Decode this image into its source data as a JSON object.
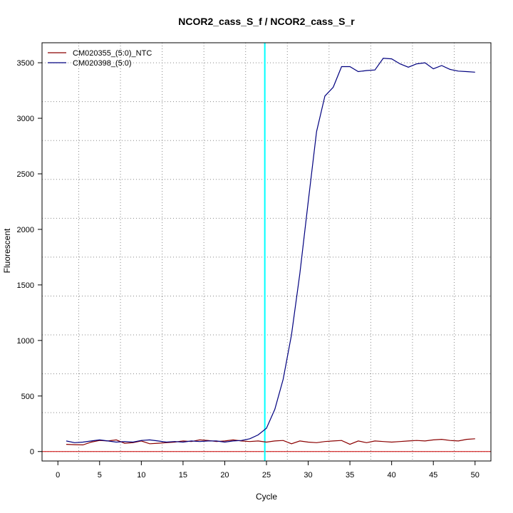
{
  "chart_data": {
    "type": "line",
    "title": "NCOR2_cass_S_f / NCOR2_cass_S_r",
    "xlabel": "Cycle",
    "ylabel": "Fluorescent",
    "xlim": [
      -1.9,
      51.9
    ],
    "ylim": [
      -85,
      3680
    ],
    "x_ticks": [
      0,
      5,
      10,
      15,
      20,
      25,
      30,
      35,
      40,
      45,
      50
    ],
    "y_ticks": [
      0,
      500,
      1000,
      1500,
      2000,
      2500,
      3000,
      3500
    ],
    "x_grid": [
      2.5,
      7.5,
      12.5,
      17.5,
      22.5,
      27.5,
      32.5,
      37.5,
      42.5,
      47.5
    ],
    "y_grid": [
      0,
      350,
      700,
      1050,
      1400,
      1750,
      2100,
      2450,
      2800,
      3150,
      3500
    ],
    "grid": true,
    "legend_position": "top-left",
    "threshold_line": {
      "x": 24.8,
      "color": "#00ffff"
    },
    "baseline": {
      "y": 0,
      "color": "#cc0000"
    },
    "series": [
      {
        "name": "CM020355_(5:0)_NTC",
        "color": "#8b0000",
        "x": [
          1,
          2,
          3,
          4,
          5,
          6,
          7,
          8,
          9,
          10,
          11,
          12,
          13,
          14,
          15,
          16,
          17,
          18,
          19,
          20,
          21,
          22,
          23,
          24,
          25,
          26,
          27,
          28,
          29,
          30,
          31,
          32,
          33,
          34,
          35,
          36,
          37,
          38,
          39,
          40,
          41,
          42,
          43,
          44,
          45,
          46,
          47,
          48,
          49,
          50
        ],
        "values": [
          65,
          62,
          60,
          85,
          100,
          95,
          105,
          75,
          80,
          95,
          70,
          75,
          80,
          85,
          95,
          90,
          105,
          100,
          90,
          95,
          105,
          95,
          90,
          95,
          85,
          95,
          100,
          70,
          95,
          85,
          80,
          90,
          95,
          100,
          65,
          95,
          80,
          95,
          90,
          85,
          90,
          95,
          100,
          95,
          105,
          110,
          100,
          95,
          110,
          115
        ]
      },
      {
        "name": "CM020398_(5:0)",
        "color": "#00007f",
        "x": [
          1,
          2,
          3,
          4,
          5,
          6,
          7,
          8,
          9,
          10,
          11,
          12,
          13,
          14,
          15,
          16,
          17,
          18,
          19,
          20,
          21,
          22,
          23,
          24,
          25,
          26,
          27,
          28,
          29,
          30,
          31,
          32,
          33,
          34,
          35,
          36,
          37,
          38,
          39,
          40,
          41,
          42,
          43,
          44,
          45,
          46,
          47,
          48,
          49,
          50
        ],
        "values": [
          95,
          80,
          85,
          95,
          105,
          95,
          85,
          90,
          85,
          100,
          105,
          95,
          85,
          90,
          85,
          95,
          90,
          95,
          95,
          85,
          95,
          100,
          115,
          150,
          210,
          380,
          650,
          1050,
          1600,
          2250,
          2880,
          3200,
          3280,
          3465,
          3465,
          3420,
          3430,
          3435,
          3540,
          3535,
          3490,
          3460,
          3490,
          3500,
          3445,
          3475,
          3440,
          3425,
          3420,
          3415
        ]
      }
    ]
  }
}
